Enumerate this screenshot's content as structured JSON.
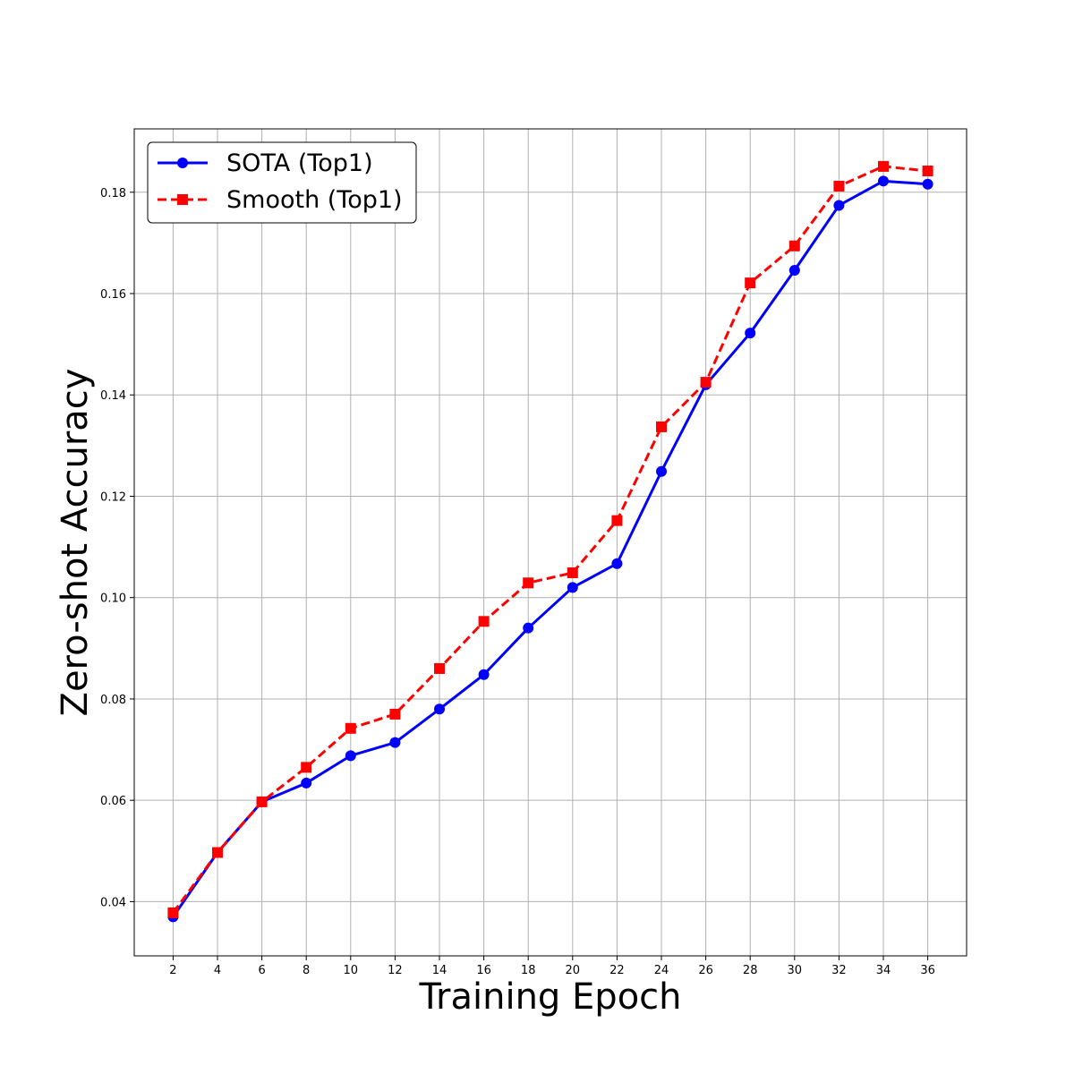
{
  "chart_data": {
    "type": "line",
    "title": "",
    "xlabel": "Training Epoch",
    "ylabel": "Zero-shot Accuracy",
    "x": [
      2,
      4,
      6,
      8,
      10,
      12,
      14,
      16,
      18,
      20,
      22,
      24,
      26,
      28,
      30,
      32,
      34,
      36
    ],
    "xticks": [
      2,
      4,
      6,
      8,
      10,
      12,
      14,
      16,
      18,
      20,
      22,
      24,
      26,
      28,
      30,
      32,
      34,
      36
    ],
    "yticks": [
      0.04,
      0.06,
      0.08,
      0.1,
      0.12,
      0.14,
      0.16,
      0.18
    ],
    "ytick_labels": [
      "0.04",
      "0.06",
      "0.08",
      "0.10",
      "0.12",
      "0.14",
      "0.16",
      "0.18"
    ],
    "xlim": [
      0.25,
      37.75
    ],
    "ylim": [
      0.0293,
      0.1925
    ],
    "grid": true,
    "legend_position": "top-left",
    "series": [
      {
        "name": "SOTA (Top1)",
        "color": "#0000ff",
        "marker": "circle",
        "linestyle": "solid",
        "values": [
          0.037,
          0.0497,
          0.0597,
          0.0634,
          0.0688,
          0.0714,
          0.078,
          0.0848,
          0.094,
          0.102,
          0.1067,
          0.1249,
          0.142,
          0.1522,
          0.1646,
          0.1774,
          0.1822,
          0.1816
        ]
      },
      {
        "name": "Smooth (Top1)",
        "color": "#ff0000",
        "marker": "square",
        "linestyle": "dashed",
        "values": [
          0.0378,
          0.0497,
          0.0597,
          0.0665,
          0.0742,
          0.077,
          0.086,
          0.0953,
          0.1029,
          0.1049,
          0.1152,
          0.1337,
          0.1425,
          0.1621,
          0.1694,
          0.1812,
          0.1851,
          0.1842
        ]
      }
    ]
  }
}
